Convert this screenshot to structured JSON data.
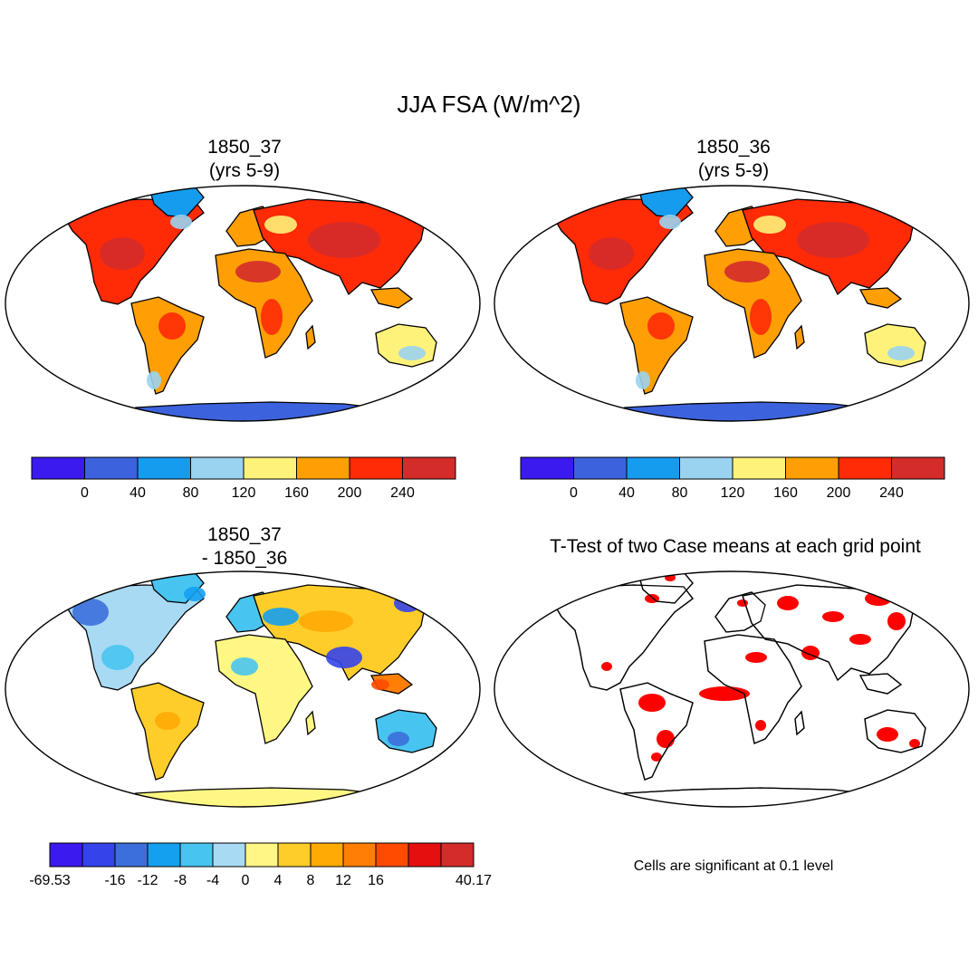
{
  "title": "JJA FSA (W/m^2)",
  "panels": {
    "top_left": {
      "line1": "1850_37",
      "line2": "(yrs 5-9)"
    },
    "top_right": {
      "line1": "1850_36",
      "line2": " (yrs 5-9)"
    },
    "bottom_left": {
      "line1": "1850_37",
      "line2": "- 1850_36"
    },
    "bottom_right": {
      "title": "T-Test of two Case means at each grid point",
      "note": "Cells are significant at 0.1 level"
    }
  },
  "colorbar_abs": {
    "colors": [
      "#3b1aef",
      "#3c63dd",
      "#169cef",
      "#9ad3ef",
      "#fff27a",
      "#ff9f05",
      "#ff2a06",
      "#d42b2b"
    ],
    "labels": [
      "0",
      "40",
      "80",
      "120",
      "160",
      "200",
      "240"
    ]
  },
  "colorbar_diff": {
    "colors": [
      "#3b1aef",
      "#3444ea",
      "#3c6fdc",
      "#14a0ef",
      "#48c4f0",
      "#a8daf4",
      "#fff784",
      "#ffcd2a",
      "#ffaa05",
      "#ff7e05",
      "#ff4a00",
      "#e60f0f",
      "#d42b2b"
    ],
    "labels": [
      "-69.53",
      "-16",
      "-12",
      "-8",
      "-4",
      "0",
      "4",
      "8",
      "12",
      "16",
      "40.17"
    ]
  },
  "map_colors": {
    "antarctica_abs": "#3c63dd",
    "antarctica_diff": "#fff784",
    "significance": "#ff0000",
    "coastline": "#000000"
  }
}
